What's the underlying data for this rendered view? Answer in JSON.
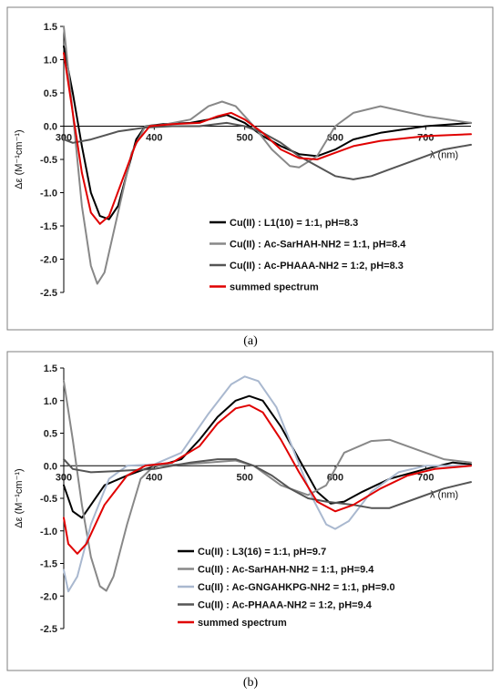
{
  "chart_data": [
    {
      "panel": "(a)",
      "type": "line",
      "xlabel": "λ (nm)",
      "ylabel": "Δε (M⁻¹cm⁻¹)",
      "xlim": [
        300,
        750
      ],
      "ylim": [
        -2.5,
        1.5
      ],
      "xticks": [
        300,
        400,
        500,
        600,
        700
      ],
      "yticks": [
        1.5,
        1.0,
        0.5,
        0.0,
        -0.5,
        -1.0,
        -1.5,
        -2.0,
        -2.5
      ],
      "xtick_labels": [
        "300",
        "400",
        "500",
        "600",
        "700"
      ],
      "ytick_labels": [
        "1.5",
        "1.0",
        "0.5",
        "0.0",
        "-0.5",
        "-1.0",
        "-1.5",
        "-2.0",
        "-2.5"
      ],
      "legend_position": "lower-right",
      "series": [
        {
          "name": "Cu(II) : L1(10) = 1:1, pH=8.3",
          "color": "#000000",
          "width": 2,
          "points": [
            [
              300,
              1.2
            ],
            [
              310,
              0.5
            ],
            [
              320,
              -0.3
            ],
            [
              330,
              -1.0
            ],
            [
              340,
              -1.35
            ],
            [
              350,
              -1.4
            ],
            [
              360,
              -1.2
            ],
            [
              370,
              -0.7
            ],
            [
              380,
              -0.2
            ],
            [
              390,
              0.0
            ],
            [
              410,
              0.03
            ],
            [
              440,
              0.05
            ],
            [
              460,
              0.1
            ],
            [
              480,
              0.17
            ],
            [
              500,
              0.05
            ],
            [
              520,
              -0.15
            ],
            [
              540,
              -0.3
            ],
            [
              560,
              -0.42
            ],
            [
              580,
              -0.45
            ],
            [
              600,
              -0.35
            ],
            [
              620,
              -0.2
            ],
            [
              650,
              -0.1
            ],
            [
              700,
              0.0
            ],
            [
              750,
              0.05
            ]
          ]
        },
        {
          "name": "Cu(II) : Ac-SarHAH-NH2 = 1:1, pH=8.4",
          "color": "#888888",
          "width": 2,
          "points": [
            [
              300,
              1.5
            ],
            [
              310,
              0.2
            ],
            [
              320,
              -1.2
            ],
            [
              330,
              -2.1
            ],
            [
              337,
              -2.37
            ],
            [
              345,
              -2.2
            ],
            [
              360,
              -1.3
            ],
            [
              375,
              -0.4
            ],
            [
              390,
              0.0
            ],
            [
              410,
              0.02
            ],
            [
              440,
              0.1
            ],
            [
              460,
              0.3
            ],
            [
              475,
              0.37
            ],
            [
              490,
              0.3
            ],
            [
              510,
              0.0
            ],
            [
              530,
              -0.35
            ],
            [
              550,
              -0.6
            ],
            [
              560,
              -0.62
            ],
            [
              580,
              -0.45
            ],
            [
              600,
              0.0
            ],
            [
              620,
              0.2
            ],
            [
              650,
              0.3
            ],
            [
              700,
              0.15
            ],
            [
              750,
              0.05
            ]
          ]
        },
        {
          "name": "Cu(II) : Ac-PHAAA-NH2 = 1:2, pH=8.3",
          "color": "#555555",
          "width": 2,
          "points": [
            [
              300,
              -0.2
            ],
            [
              310,
              -0.25
            ],
            [
              330,
              -0.2
            ],
            [
              360,
              -0.08
            ],
            [
              390,
              -0.02
            ],
            [
              420,
              0.0
            ],
            [
              450,
              0.0
            ],
            [
              480,
              0.05
            ],
            [
              500,
              0.0
            ],
            [
              520,
              -0.1
            ],
            [
              540,
              -0.25
            ],
            [
              560,
              -0.45
            ],
            [
              580,
              -0.6
            ],
            [
              600,
              -0.75
            ],
            [
              620,
              -0.8
            ],
            [
              640,
              -0.75
            ],
            [
              660,
              -0.65
            ],
            [
              680,
              -0.55
            ],
            [
              700,
              -0.45
            ],
            [
              720,
              -0.35
            ],
            [
              750,
              -0.28
            ]
          ]
        },
        {
          "name": "summed spectrum",
          "color": "#e00000",
          "width": 2,
          "points": [
            [
              300,
              1.1
            ],
            [
              310,
              0.2
            ],
            [
              320,
              -0.7
            ],
            [
              330,
              -1.3
            ],
            [
              340,
              -1.47
            ],
            [
              350,
              -1.35
            ],
            [
              365,
              -0.8
            ],
            [
              380,
              -0.25
            ],
            [
              395,
              0.0
            ],
            [
              420,
              0.03
            ],
            [
              450,
              0.05
            ],
            [
              470,
              0.15
            ],
            [
              485,
              0.2
            ],
            [
              500,
              0.1
            ],
            [
              520,
              -0.1
            ],
            [
              540,
              -0.35
            ],
            [
              560,
              -0.48
            ],
            [
              580,
              -0.5
            ],
            [
              600,
              -0.4
            ],
            [
              620,
              -0.3
            ],
            [
              650,
              -0.22
            ],
            [
              700,
              -0.15
            ],
            [
              750,
              -0.12
            ]
          ]
        }
      ]
    },
    {
      "panel": "(b)",
      "type": "line",
      "xlabel": "λ (nm)",
      "ylabel": "Δε (M⁻¹cm⁻¹)",
      "xlim": [
        300,
        750
      ],
      "ylim": [
        -2.5,
        1.5
      ],
      "xticks": [
        300,
        400,
        500,
        600,
        700
      ],
      "yticks": [
        1.5,
        1.0,
        0.5,
        0.0,
        -0.5,
        -1.0,
        -1.5,
        -2.0,
        -2.5
      ],
      "xtick_labels": [
        "300",
        "400",
        "500",
        "600",
        "700"
      ],
      "ytick_labels": [
        "1.5",
        "1.0",
        "0.5",
        "0.0",
        "-0.5",
        "-1.0",
        "-1.5",
        "-2.0",
        "-2.5"
      ],
      "legend_position": "lower-right",
      "series": [
        {
          "name": "Cu(II) : L3(16) = 1:1, pH=9.7",
          "color": "#000000",
          "width": 2,
          "points": [
            [
              300,
              -0.3
            ],
            [
              310,
              -0.7
            ],
            [
              320,
              -0.8
            ],
            [
              330,
              -0.6
            ],
            [
              345,
              -0.3
            ],
            [
              370,
              -0.15
            ],
            [
              390,
              -0.05
            ],
            [
              410,
              0.02
            ],
            [
              430,
              0.1
            ],
            [
              450,
              0.4
            ],
            [
              470,
              0.75
            ],
            [
              490,
              1.0
            ],
            [
              505,
              1.07
            ],
            [
              520,
              1.0
            ],
            [
              540,
              0.6
            ],
            [
              560,
              0.1
            ],
            [
              580,
              -0.4
            ],
            [
              595,
              -0.58
            ],
            [
              610,
              -0.55
            ],
            [
              630,
              -0.4
            ],
            [
              660,
              -0.2
            ],
            [
              700,
              -0.05
            ],
            [
              730,
              0.05
            ],
            [
              750,
              0.02
            ]
          ]
        },
        {
          "name": "Cu(II) : Ac-SarHAH-NH2 = 1:1, pH=9.4",
          "color": "#888888",
          "width": 2,
          "points": [
            [
              300,
              1.3
            ],
            [
              310,
              0.4
            ],
            [
              320,
              -0.6
            ],
            [
              330,
              -1.4
            ],
            [
              340,
              -1.85
            ],
            [
              347,
              -1.92
            ],
            [
              355,
              -1.7
            ],
            [
              370,
              -0.9
            ],
            [
              385,
              -0.2
            ],
            [
              400,
              0.0
            ],
            [
              430,
              0.02
            ],
            [
              460,
              0.05
            ],
            [
              490,
              0.08
            ],
            [
              510,
              0.0
            ],
            [
              540,
              -0.3
            ],
            [
              570,
              -0.45
            ],
            [
              590,
              -0.3
            ],
            [
              610,
              0.2
            ],
            [
              640,
              0.38
            ],
            [
              660,
              0.4
            ],
            [
              690,
              0.25
            ],
            [
              720,
              0.1
            ],
            [
              750,
              0.05
            ]
          ]
        },
        {
          "name": "Cu(II) : Ac-GNGAHKPG-NH2 = 1:1, pH=9.0",
          "color": "#a9b8cf",
          "width": 2,
          "points": [
            [
              300,
              -1.6
            ],
            [
              305,
              -1.93
            ],
            [
              315,
              -1.7
            ],
            [
              330,
              -0.9
            ],
            [
              350,
              -0.2
            ],
            [
              370,
              0.0
            ],
            [
              400,
              0.02
            ],
            [
              430,
              0.2
            ],
            [
              460,
              0.8
            ],
            [
              485,
              1.25
            ],
            [
              500,
              1.37
            ],
            [
              515,
              1.3
            ],
            [
              535,
              0.9
            ],
            [
              555,
              0.2
            ],
            [
              575,
              -0.5
            ],
            [
              590,
              -0.9
            ],
            [
              600,
              -0.97
            ],
            [
              615,
              -0.85
            ],
            [
              640,
              -0.4
            ],
            [
              670,
              -0.1
            ],
            [
              700,
              0.0
            ],
            [
              750,
              0.0
            ]
          ]
        },
        {
          "name": "Cu(II) : Ac-PHAAA-NH2 = 1:2, pH=9.4",
          "color": "#555555",
          "width": 2,
          "points": [
            [
              300,
              0.1
            ],
            [
              310,
              -0.05
            ],
            [
              330,
              -0.1
            ],
            [
              360,
              -0.08
            ],
            [
              400,
              -0.05
            ],
            [
              440,
              0.05
            ],
            [
              470,
              0.1
            ],
            [
              490,
              0.1
            ],
            [
              510,
              0.0
            ],
            [
              530,
              -0.15
            ],
            [
              550,
              -0.35
            ],
            [
              570,
              -0.5
            ],
            [
              590,
              -0.55
            ],
            [
              620,
              -0.6
            ],
            [
              640,
              -0.65
            ],
            [
              660,
              -0.65
            ],
            [
              690,
              -0.5
            ],
            [
              720,
              -0.35
            ],
            [
              750,
              -0.25
            ]
          ]
        },
        {
          "name": "summed spectrum",
          "color": "#e00000",
          "width": 2,
          "points": [
            [
              300,
              -0.8
            ],
            [
              305,
              -1.2
            ],
            [
              315,
              -1.35
            ],
            [
              325,
              -1.2
            ],
            [
              345,
              -0.6
            ],
            [
              370,
              -0.15
            ],
            [
              390,
              0.0
            ],
            [
              420,
              0.05
            ],
            [
              450,
              0.3
            ],
            [
              470,
              0.65
            ],
            [
              490,
              0.88
            ],
            [
              505,
              0.93
            ],
            [
              520,
              0.82
            ],
            [
              540,
              0.4
            ],
            [
              560,
              -0.1
            ],
            [
              580,
              -0.55
            ],
            [
              600,
              -0.7
            ],
            [
              620,
              -0.6
            ],
            [
              650,
              -0.35
            ],
            [
              680,
              -0.15
            ],
            [
              710,
              -0.05
            ],
            [
              750,
              0.0
            ]
          ]
        }
      ]
    }
  ],
  "captions": [
    "(a)",
    "(b)"
  ]
}
